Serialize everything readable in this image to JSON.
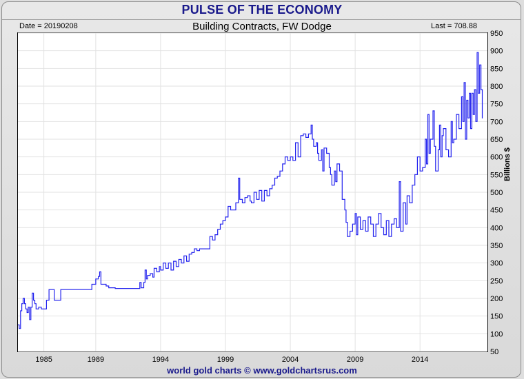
{
  "title": "PULSE OF THE ECONOMY",
  "header": {
    "date_label": "Date = 20190208",
    "chart_title": "Building Contracts, FW Dodge",
    "last_label": "Last = 708.88"
  },
  "footer": "world gold charts © www.goldchartsrus.com",
  "colors": {
    "line": "#2222ee",
    "title": "#1a1a8c"
  },
  "chart_data": {
    "type": "line",
    "title": "Building Contracts, FW Dodge",
    "ylabel": "Billions $",
    "xlabel": "",
    "ylim": [
      50,
      950
    ],
    "xlim": [
      1983.0,
      2019.2
    ],
    "y_ticks": [
      50,
      100,
      150,
      200,
      250,
      300,
      350,
      400,
      450,
      500,
      550,
      600,
      650,
      700,
      750,
      800,
      850,
      900,
      950
    ],
    "x_ticks": [
      1985,
      1989,
      1994,
      1999,
      2004,
      2009,
      2014
    ],
    "grid": true,
    "series": [
      {
        "values": [
          [
            1983.0,
            125
          ],
          [
            1983.1,
            115
          ],
          [
            1983.2,
            165
          ],
          [
            1983.3,
            185
          ],
          [
            1983.4,
            200
          ],
          [
            1983.5,
            185
          ],
          [
            1983.6,
            170
          ],
          [
            1983.7,
            160
          ],
          [
            1983.8,
            175
          ],
          [
            1983.9,
            140
          ],
          [
            1984.0,
            175
          ],
          [
            1984.1,
            215
          ],
          [
            1984.2,
            195
          ],
          [
            1984.3,
            185
          ],
          [
            1984.4,
            170
          ],
          [
            1984.6,
            175
          ],
          [
            1984.8,
            170
          ],
          [
            1985.0,
            170
          ],
          [
            1985.1,
            170
          ],
          [
            1985.2,
            195
          ],
          [
            1985.4,
            225
          ],
          [
            1985.6,
            225
          ],
          [
            1985.8,
            195
          ],
          [
            1986.0,
            195
          ],
          [
            1986.3,
            225
          ],
          [
            1986.6,
            225
          ],
          [
            1987.0,
            225
          ],
          [
            1987.5,
            225
          ],
          [
            1988.0,
            225
          ],
          [
            1988.5,
            225
          ],
          [
            1988.7,
            240
          ],
          [
            1988.9,
            240
          ],
          [
            1989.0,
            255
          ],
          [
            1989.2,
            262
          ],
          [
            1989.3,
            275
          ],
          [
            1989.4,
            240
          ],
          [
            1989.6,
            240
          ],
          [
            1989.8,
            235
          ],
          [
            1990.0,
            230
          ],
          [
            1990.5,
            228
          ],
          [
            1991.0,
            228
          ],
          [
            1991.5,
            228
          ],
          [
            1992.0,
            228
          ],
          [
            1992.2,
            228
          ],
          [
            1992.4,
            245
          ],
          [
            1992.5,
            230
          ],
          [
            1992.7,
            245
          ],
          [
            1992.8,
            280
          ],
          [
            1992.9,
            255
          ],
          [
            1993.0,
            265
          ],
          [
            1993.2,
            270
          ],
          [
            1993.4,
            260
          ],
          [
            1993.5,
            285
          ],
          [
            1993.7,
            275
          ],
          [
            1993.9,
            290
          ],
          [
            1994.0,
            280
          ],
          [
            1994.2,
            300
          ],
          [
            1994.4,
            285
          ],
          [
            1994.6,
            300
          ],
          [
            1994.8,
            280
          ],
          [
            1995.0,
            305
          ],
          [
            1995.2,
            290
          ],
          [
            1995.4,
            310
          ],
          [
            1995.6,
            300
          ],
          [
            1995.8,
            320
          ],
          [
            1996.0,
            305
          ],
          [
            1996.2,
            325
          ],
          [
            1996.4,
            330
          ],
          [
            1996.6,
            340
          ],
          [
            1996.8,
            335
          ],
          [
            1997.0,
            340
          ],
          [
            1997.3,
            340
          ],
          [
            1997.6,
            340
          ],
          [
            1997.8,
            375
          ],
          [
            1998.0,
            365
          ],
          [
            1998.2,
            380
          ],
          [
            1998.4,
            395
          ],
          [
            1998.6,
            410
          ],
          [
            1998.8,
            420
          ],
          [
            1999.0,
            430
          ],
          [
            1999.2,
            460
          ],
          [
            1999.4,
            450
          ],
          [
            1999.6,
            450
          ],
          [
            1999.8,
            470
          ],
          [
            2000.0,
            540
          ],
          [
            2000.1,
            480
          ],
          [
            2000.3,
            470
          ],
          [
            2000.5,
            485
          ],
          [
            2000.7,
            490
          ],
          [
            2000.9,
            475
          ],
          [
            2001.0,
            470
          ],
          [
            2001.2,
            500
          ],
          [
            2001.4,
            480
          ],
          [
            2001.6,
            505
          ],
          [
            2001.8,
            475
          ],
          [
            2002.0,
            505
          ],
          [
            2002.2,
            490
          ],
          [
            2002.4,
            510
          ],
          [
            2002.6,
            520
          ],
          [
            2002.8,
            540
          ],
          [
            2003.0,
            545
          ],
          [
            2003.2,
            560
          ],
          [
            2003.4,
            580
          ],
          [
            2003.6,
            600
          ],
          [
            2003.8,
            590
          ],
          [
            2004.0,
            600
          ],
          [
            2004.2,
            590
          ],
          [
            2004.4,
            640
          ],
          [
            2004.6,
            600
          ],
          [
            2004.8,
            660
          ],
          [
            2005.0,
            665
          ],
          [
            2005.2,
            655
          ],
          [
            2005.4,
            665
          ],
          [
            2005.6,
            690
          ],
          [
            2005.7,
            650
          ],
          [
            2005.8,
            630
          ],
          [
            2006.0,
            640
          ],
          [
            2006.1,
            610
          ],
          [
            2006.2,
            590
          ],
          [
            2006.4,
            620
          ],
          [
            2006.5,
            560
          ],
          [
            2006.6,
            625
          ],
          [
            2006.8,
            610
          ],
          [
            2007.0,
            570
          ],
          [
            2007.1,
            550
          ],
          [
            2007.2,
            520
          ],
          [
            2007.4,
            560
          ],
          [
            2007.5,
            530
          ],
          [
            2007.6,
            580
          ],
          [
            2007.8,
            560
          ],
          [
            2008.0,
            480
          ],
          [
            2008.2,
            450
          ],
          [
            2008.3,
            415
          ],
          [
            2008.4,
            375
          ],
          [
            2008.6,
            390
          ],
          [
            2008.8,
            410
          ],
          [
            2009.0,
            440
          ],
          [
            2009.1,
            380
          ],
          [
            2009.2,
            430
          ],
          [
            2009.4,
            395
          ],
          [
            2009.6,
            420
          ],
          [
            2009.8,
            390
          ],
          [
            2010.0,
            430
          ],
          [
            2010.2,
            410
          ],
          [
            2010.4,
            375
          ],
          [
            2010.6,
            410
          ],
          [
            2010.8,
            440
          ],
          [
            2011.0,
            400
          ],
          [
            2011.2,
            380
          ],
          [
            2011.4,
            420
          ],
          [
            2011.6,
            375
          ],
          [
            2011.8,
            410
          ],
          [
            2012.0,
            425
          ],
          [
            2012.2,
            400
          ],
          [
            2012.4,
            530
          ],
          [
            2012.5,
            390
          ],
          [
            2012.7,
            470
          ],
          [
            2012.9,
            410
          ],
          [
            2013.0,
            490
          ],
          [
            2013.2,
            470
          ],
          [
            2013.4,
            520
          ],
          [
            2013.6,
            550
          ],
          [
            2013.8,
            600
          ],
          [
            2014.0,
            560
          ],
          [
            2014.2,
            570
          ],
          [
            2014.4,
            650
          ],
          [
            2014.5,
            580
          ],
          [
            2014.6,
            720
          ],
          [
            2014.7,
            610
          ],
          [
            2014.8,
            650
          ],
          [
            2015.0,
            730
          ],
          [
            2015.1,
            630
          ],
          [
            2015.2,
            560
          ],
          [
            2015.4,
            620
          ],
          [
            2015.5,
            690
          ],
          [
            2015.6,
            600
          ],
          [
            2015.7,
            660
          ],
          [
            2015.8,
            680
          ],
          [
            2016.0,
            620
          ],
          [
            2016.2,
            600
          ],
          [
            2016.4,
            700
          ],
          [
            2016.5,
            640
          ],
          [
            2016.6,
            650
          ],
          [
            2016.8,
            720
          ],
          [
            2017.0,
            680
          ],
          [
            2017.2,
            770
          ],
          [
            2017.3,
            700
          ],
          [
            2017.4,
            810
          ],
          [
            2017.5,
            650
          ],
          [
            2017.6,
            760
          ],
          [
            2017.7,
            710
          ],
          [
            2017.8,
            780
          ],
          [
            2017.9,
            680
          ],
          [
            2018.0,
            780
          ],
          [
            2018.1,
            720
          ],
          [
            2018.2,
            790
          ],
          [
            2018.3,
            700
          ],
          [
            2018.4,
            895
          ],
          [
            2018.5,
            780
          ],
          [
            2018.6,
            860
          ],
          [
            2018.7,
            790
          ],
          [
            2018.8,
            708.88
          ]
        ]
      }
    ]
  }
}
